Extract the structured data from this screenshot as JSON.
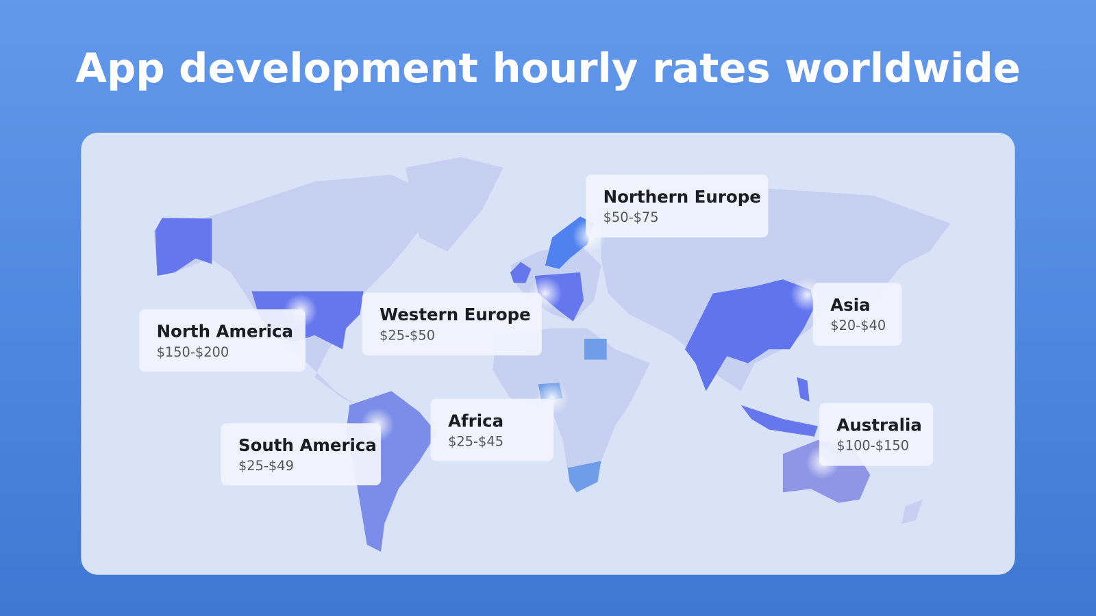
{
  "header": {
    "title": "App development hourly rates worldwide"
  },
  "regions": [
    {
      "name": "North America",
      "rate": "$150-$200"
    },
    {
      "name": "Western Europe",
      "rate": "$25-$50"
    },
    {
      "name": "Northern Europe",
      "rate": "$50-$75"
    },
    {
      "name": "Asia",
      "rate": "$20-$40"
    },
    {
      "name": "Australia",
      "rate": "$100-$150"
    },
    {
      "name": "Africa",
      "rate": "$25-$45"
    },
    {
      "name": "South America",
      "rate": "$25-$49"
    }
  ]
}
